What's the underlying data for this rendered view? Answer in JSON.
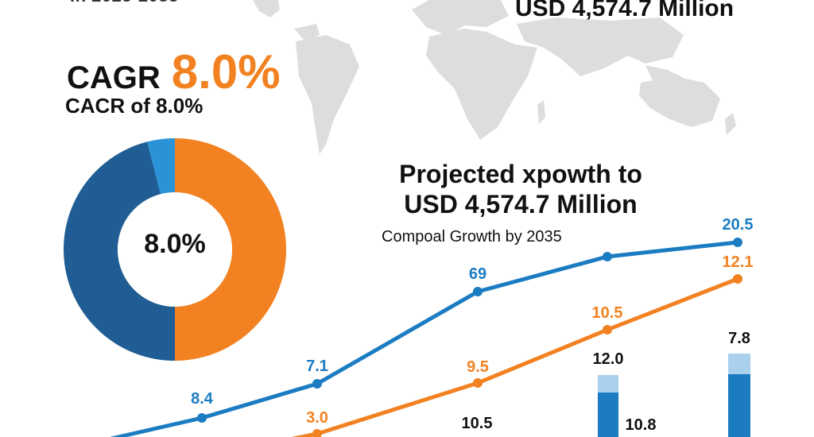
{
  "header": {
    "top_cut_text": "in 2025-2035",
    "headline": "USD 4,574.7 Million"
  },
  "cagr": {
    "label": "CAGR",
    "value": "8.0%",
    "subtitle": "CACR of 8.0%"
  },
  "projection": {
    "title_line1": "Projected xpowth to",
    "title_line2": "USD 4,574.7 Million",
    "subtitle": "Compoal Growth by 2035"
  },
  "colors": {
    "blue": "#1b7cc2",
    "dark_blue": "#1f5d94",
    "light_blue": "#2a93d8",
    "orange": "#f28221",
    "map_gray": "#dddddd"
  },
  "chart_data": [
    {
      "type": "pie",
      "center_label": "8.0%",
      "values": [
        50,
        46,
        4
      ],
      "colors": [
        "#f28221",
        "#1f5d94",
        "#2a93d8"
      ]
    },
    {
      "type": "line",
      "series": [
        {
          "color": "#1b7cc2",
          "values": [
            null,
            8.4,
            7.1,
            69,
            null,
            20.5
          ],
          "labels": [
            "",
            "8.4",
            "7.1",
            "69",
            "",
            "20.5"
          ]
        },
        {
          "color": "#f28221",
          "values": [
            null,
            null,
            3.0,
            9.5,
            10.5,
            12.1
          ],
          "labels": [
            "",
            "",
            "3.0",
            "9.5",
            "10.5",
            "12.1"
          ]
        }
      ]
    },
    {
      "type": "bar",
      "labels": [
        "12.0",
        "7.8"
      ],
      "loose_labels": [
        "10.5",
        "10.8"
      ]
    }
  ]
}
